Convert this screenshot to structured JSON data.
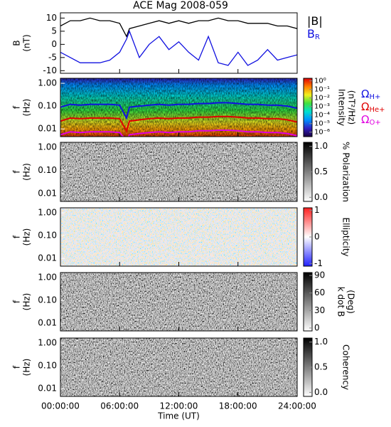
{
  "title": "ACE Mag 2008-059",
  "chart_data": [
    {
      "type": "line",
      "ylabel": [
        "B",
        "(nT)"
      ],
      "x": [
        0,
        1,
        2,
        3,
        4,
        5,
        6,
        6.7,
        7,
        8,
        9,
        10,
        11,
        12,
        13,
        14,
        15,
        16,
        17,
        18,
        19,
        20,
        21,
        22,
        23,
        24
      ],
      "xlim": [
        0,
        24
      ],
      "ylim": [
        -11,
        12
      ],
      "yticks": [
        -10,
        -5,
        0,
        5,
        10
      ],
      "series": [
        {
          "name": "|B|",
          "color": "#000000",
          "values": [
            7,
            9,
            9,
            10,
            9,
            9,
            8,
            3,
            6,
            7,
            8,
            9,
            8,
            9,
            8,
            9,
            9,
            10,
            9,
            9,
            8,
            8,
            8,
            7,
            7,
            6
          ]
        },
        {
          "name": "B",
          "sub": "R",
          "color": "#1010e0",
          "values": [
            -3,
            -5,
            -7,
            -7,
            -7,
            -6,
            -3,
            2,
            5,
            -5,
            0,
            3,
            -2,
            1,
            -3,
            -6,
            3,
            -7,
            -8,
            -3,
            -8,
            -6,
            -2,
            -6,
            -5,
            -4
          ]
        }
      ]
    },
    {
      "type": "spectrogram",
      "ylabel": [
        "f",
        "(Hz)"
      ],
      "log_y": true,
      "ylim": [
        0.0046,
        1.66
      ],
      "yticks": [
        {
          "value": 1,
          "label": "1.00"
        },
        {
          "value": 0.1,
          "label": "0.10"
        },
        {
          "value": 0.01,
          "label": "0.01"
        }
      ],
      "colorbar": {
        "label": [
          "Intensity",
          "(nT²/Hz)"
        ],
        "log": true,
        "lim": [
          3e-07,
          2
        ],
        "ticks": [
          {
            "value": 1,
            "label": "10⁰"
          },
          {
            "value": 0.1,
            "label": "10⁻¹"
          },
          {
            "value": 0.01,
            "label": "10⁻²"
          },
          {
            "value": 0.001,
            "label": "10⁻³"
          },
          {
            "value": 0.0001,
            "label": "10⁻⁴"
          },
          {
            "value": 1e-05,
            "label": "10⁻⁵"
          },
          {
            "value": 1e-06,
            "label": "10⁻⁶"
          }
        ],
        "colormap": [
          "#1a0040",
          "#3020c0",
          "#0090ff",
          "#00e0d0",
          "#40e040",
          "#f0f020",
          "#ff8000",
          "#e00000"
        ]
      },
      "series": [
        {
          "name": "Ω",
          "sub": "H+",
          "color": "#1010e0",
          "values": [
            0.09,
            0.12,
            0.11,
            0.12,
            0.12,
            0.12,
            0.11,
            0.03,
            0.09,
            0.1,
            0.11,
            0.12,
            0.11,
            0.12,
            0.12,
            0.13,
            0.13,
            0.14,
            0.14,
            0.13,
            0.12,
            0.12,
            0.11,
            0.11,
            0.1,
            0.08
          ]
        },
        {
          "name": "Ω",
          "sub": "He+",
          "color": "#e00000",
          "values": [
            0.022,
            0.03,
            0.028,
            0.03,
            0.03,
            0.03,
            0.028,
            0.008,
            0.022,
            0.025,
            0.028,
            0.03,
            0.028,
            0.03,
            0.03,
            0.033,
            0.033,
            0.035,
            0.035,
            0.033,
            0.03,
            0.03,
            0.028,
            0.028,
            0.025,
            0.02
          ]
        },
        {
          "name": "Ω",
          "sub": "O+",
          "color": "#e000e0",
          "values": [
            0.0056,
            0.0075,
            0.007,
            0.0075,
            0.0075,
            0.0075,
            0.007,
            0.003,
            0.0056,
            0.0063,
            0.007,
            0.0075,
            0.007,
            0.0075,
            0.0075,
            0.0083,
            0.0083,
            0.0088,
            0.0088,
            0.0083,
            0.0075,
            0.0075,
            0.007,
            0.007,
            0.0063,
            0.005
          ]
        }
      ]
    },
    {
      "type": "spectrogram",
      "ylabel": [
        "f",
        "(Hz)"
      ],
      "log_y": true,
      "ylim": [
        0.0046,
        1.66
      ],
      "yticks": [
        {
          "value": 1,
          "label": "1.00"
        },
        {
          "value": 0.1,
          "label": "0.10"
        },
        {
          "value": 0.01,
          "label": "0.01"
        }
      ],
      "colorbar": {
        "label": [
          "% Polarization"
        ],
        "log": false,
        "lim": [
          -0.08,
          1.08
        ],
        "ticks": [
          {
            "value": 1,
            "label": "1.0"
          },
          {
            "value": 0.5,
            "label": "0.5"
          },
          {
            "value": 0,
            "label": "0.0"
          }
        ],
        "colormap": [
          "#ffffff",
          "#000000"
        ]
      }
    },
    {
      "type": "spectrogram",
      "ylabel": [
        "f",
        "(Hz)"
      ],
      "log_y": true,
      "ylim": [
        0.0046,
        1.66
      ],
      "yticks": [
        {
          "value": 1,
          "label": "1.00"
        },
        {
          "value": 0.1,
          "label": "0.10"
        },
        {
          "value": 0.01,
          "label": "0.01"
        }
      ],
      "colorbar": {
        "label": [
          "Ellipticity"
        ],
        "log": false,
        "lim": [
          -1.1,
          1.1
        ],
        "ticks": [
          1,
          0,
          -1
        ],
        "colormap": [
          "#2020ff",
          "#ffffff",
          "#ff2020"
        ]
      }
    },
    {
      "type": "spectrogram",
      "ylabel": [
        "f",
        "(Hz)"
      ],
      "log_y": true,
      "ylim": [
        0.0046,
        1.66
      ],
      "yticks": [
        {
          "value": 1,
          "label": "1.00"
        },
        {
          "value": 0.1,
          "label": "0.10"
        },
        {
          "value": 0.01,
          "label": "0.01"
        }
      ],
      "colorbar": {
        "label": [
          "k dot B",
          "(Deg)"
        ],
        "log": false,
        "lim": [
          -5,
          95
        ],
        "ticks": [
          90,
          60,
          30,
          0
        ],
        "colormap": [
          "#ffffff",
          "#000000"
        ]
      }
    },
    {
      "type": "spectrogram",
      "ylabel": [
        "f",
        "(Hz)"
      ],
      "log_y": true,
      "ylim": [
        0.0046,
        1.66
      ],
      "yticks": [
        {
          "value": 1,
          "label": "1.00"
        },
        {
          "value": 0.1,
          "label": "0.10"
        },
        {
          "value": 0.01,
          "label": "0.01"
        }
      ],
      "colorbar": {
        "label": [
          "Coherency"
        ],
        "log": false,
        "lim": [
          -0.08,
          1.08
        ],
        "ticks": [
          {
            "value": 1,
            "label": "1.0"
          },
          {
            "value": 0.5,
            "label": "0.5"
          },
          {
            "value": 0,
            "label": "0.0"
          }
        ],
        "colormap": [
          "#ffffff",
          "#000000"
        ]
      },
      "xlabel": "Time (UT)",
      "xticks": [
        {
          "value": 0,
          "label": "00:00:00"
        },
        {
          "value": 6,
          "label": "06:00:00"
        },
        {
          "value": 12,
          "label": "12:00:00"
        },
        {
          "value": 18,
          "label": "18:00:00"
        },
        {
          "value": 24,
          "label": "24:00:00"
        }
      ]
    }
  ]
}
